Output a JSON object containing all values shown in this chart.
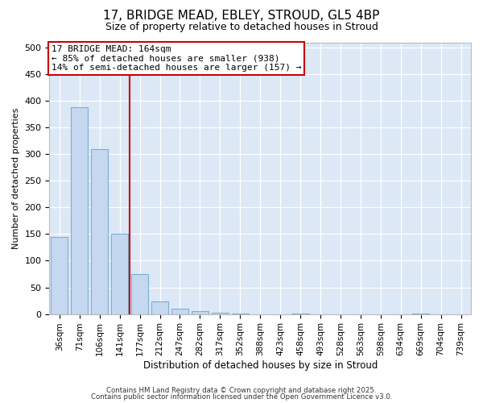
{
  "title_line1": "17, BRIDGE MEAD, EBLEY, STROUD, GL5 4BP",
  "title_line2": "Size of property relative to detached houses in Stroud",
  "xlabel": "Distribution of detached houses by size in Stroud",
  "ylabel": "Number of detached properties",
  "categories": [
    "36sqm",
    "71sqm",
    "106sqm",
    "141sqm",
    "177sqm",
    "212sqm",
    "247sqm",
    "282sqm",
    "317sqm",
    "352sqm",
    "388sqm",
    "423sqm",
    "458sqm",
    "493sqm",
    "528sqm",
    "563sqm",
    "598sqm",
    "634sqm",
    "669sqm",
    "704sqm",
    "739sqm"
  ],
  "values": [
    145,
    388,
    310,
    150,
    75,
    23,
    10,
    5,
    3,
    1,
    0,
    0,
    1,
    0,
    0,
    0,
    0,
    0,
    1,
    0,
    0
  ],
  "bar_color": "#c5d8f0",
  "bar_edge_color": "#7bafd4",
  "vline_color": "#cc0000",
  "vline_x_index": 4,
  "annotation_text": "17 BRIDGE MEAD: 164sqm\n← 85% of detached houses are smaller (938)\n14% of semi-detached houses are larger (157) →",
  "annotation_box_facecolor": "#ffffff",
  "annotation_box_edgecolor": "#cc0000",
  "ylim": [
    0,
    510
  ],
  "yticks": [
    0,
    50,
    100,
    150,
    200,
    250,
    300,
    350,
    400,
    450,
    500
  ],
  "background_color": "#dce8f5",
  "grid_color": "#ffffff",
  "fig_facecolor": "#ffffff",
  "footer_line1": "Contains HM Land Registry data © Crown copyright and database right 2025.",
  "footer_line2": "Contains public sector information licensed under the Open Government Licence v3.0."
}
